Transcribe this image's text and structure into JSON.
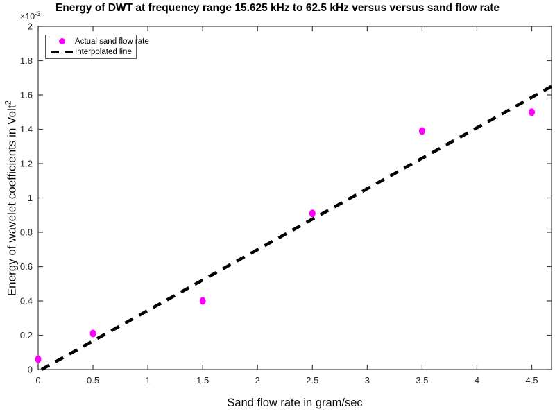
{
  "chart_data": {
    "type": "scatter",
    "title": "Energy of DWT at frequency range 15.625 kHz to 62.5 kHz versus versus sand flow rate",
    "xlabel": "Sand flow rate in gram/sec",
    "ylabel": "Energy of wavelet coefficients in Volt²",
    "ylabel_base": "Energy of wavelet coefficients in Volt",
    "ylabel_exp": "2",
    "y_offset_base": "×10",
    "y_offset_exp": "-3",
    "xlim": [
      0,
      4.68
    ],
    "ylim": [
      0,
      0.002
    ],
    "xticks": [
      0,
      0.5,
      1,
      1.5,
      2,
      2.5,
      3,
      3.5,
      4,
      4.5
    ],
    "yticks": [
      0,
      0.2,
      0.4,
      0.6,
      0.8,
      1,
      1.2,
      1.4,
      1.6,
      1.8,
      2
    ],
    "ytick_scale": 0.001,
    "grid": false,
    "axis_color": "#404040",
    "legend": {
      "position": "top-left",
      "entries": [
        {
          "label": "Actual sand flow rate",
          "marker": "filled-circle",
          "color": "#ff00ff"
        },
        {
          "label": "Interpolated line",
          "marker": "dashed-line",
          "color": "#000000"
        }
      ]
    },
    "series": [
      {
        "name": "Actual sand flow rate",
        "type": "scatter",
        "marker": "filled-circle",
        "color": "#ff00ff",
        "x": [
          0,
          0.5,
          1.5,
          2.5,
          3.5,
          4.5
        ],
        "y": [
          6e-05,
          0.00021,
          0.0004,
          0.00091,
          0.00139,
          0.0015
        ]
      },
      {
        "name": "Interpolated line",
        "type": "line",
        "style": "dashed",
        "color": "#000000",
        "x": [
          0.03,
          4.68
        ],
        "y": [
          0,
          0.00165
        ]
      }
    ]
  }
}
